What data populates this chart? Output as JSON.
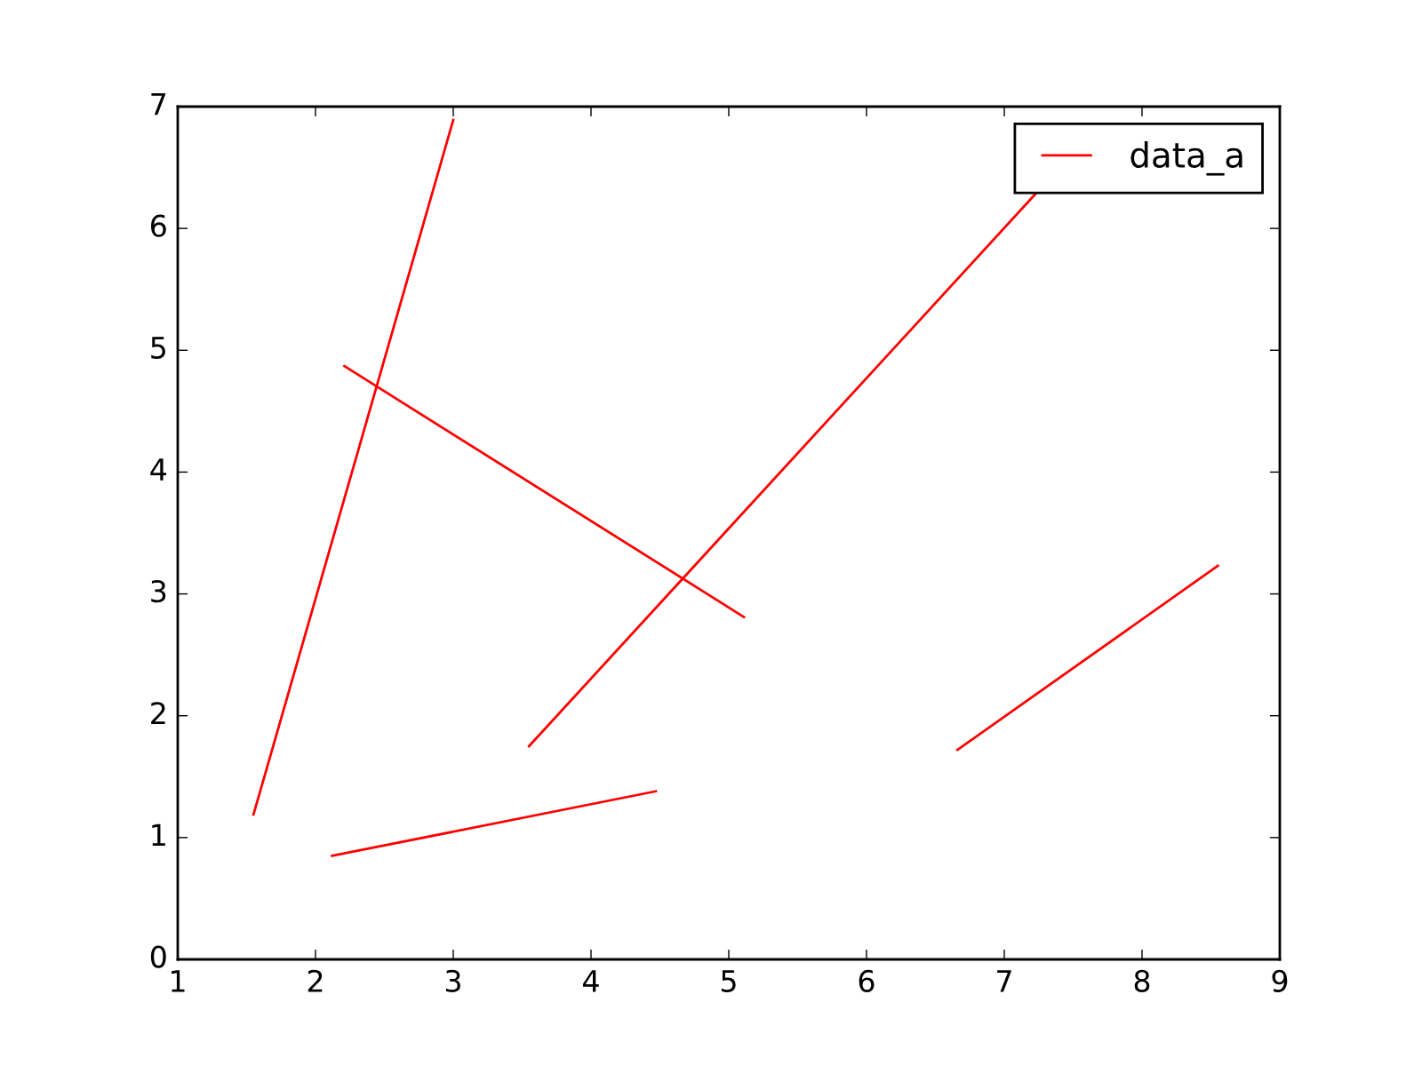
{
  "chart_data": {
    "type": "line",
    "series": [
      {
        "name": "data_a",
        "color": "#ff0000",
        "x": [
          1.55,
          3.0,
          null,
          2.21,
          5.11,
          null,
          3.55,
          7.24,
          null,
          2.12,
          4.47,
          null,
          6.66,
          8.55
        ],
        "values": [
          1.19,
          6.89,
          null,
          4.87,
          2.81,
          null,
          1.75,
          6.3,
          null,
          0.85,
          1.38,
          null,
          1.72,
          3.23
        ]
      }
    ],
    "xlim": [
      1,
      9
    ],
    "ylim": [
      0,
      7
    ],
    "xticks": [
      1,
      2,
      3,
      4,
      5,
      6,
      7,
      8,
      9
    ],
    "yticks": [
      0,
      1,
      2,
      3,
      4,
      5,
      6,
      7
    ],
    "legend": "top right",
    "grid": false,
    "line_style": "solid"
  }
}
